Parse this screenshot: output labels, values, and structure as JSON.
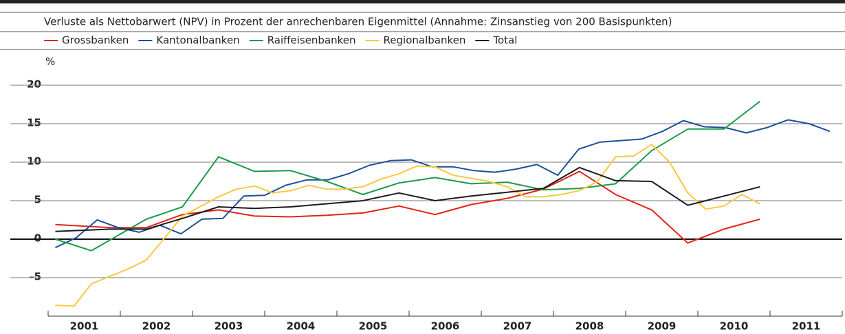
{
  "chart_data": {
    "type": "line",
    "subtitle": "Verluste als Nettobarwert (NPV) in Prozent der anrechenbaren Eigenmittel (Annahme: Zinsanstieg von 200 Basispunkten)",
    "y_label": "%",
    "xlim": [
      2001,
      2012
    ],
    "xticks": [
      {
        "value": 2001,
        "label": "2001"
      },
      {
        "value": 2002,
        "label": "2002"
      },
      {
        "value": 2003,
        "label": "2003"
      },
      {
        "value": 2004,
        "label": "2004"
      },
      {
        "value": 2005,
        "label": "2005"
      },
      {
        "value": 2006,
        "label": "2006"
      },
      {
        "value": 2007,
        "label": "2007"
      },
      {
        "value": 2008,
        "label": "2008"
      },
      {
        "value": 2009,
        "label": "2009"
      },
      {
        "value": 2010,
        "label": "2010"
      },
      {
        "value": 2011,
        "label": "2011"
      }
    ],
    "ylim": [
      -10,
      20
    ],
    "yticks": [
      {
        "value": -5,
        "label": "–5"
      },
      0,
      5,
      10,
      15,
      20
    ],
    "grid": true,
    "series": [
      {
        "name": "Grossbanken",
        "color": "#e2231a",
        "x": [
          2001.1,
          2001.86,
          2002.36,
          2002.86,
          2003.36,
          2003.86,
          2004.36,
          2004.86,
          2005.36,
          2005.86,
          2006.36,
          2006.86,
          2007.36,
          2007.86,
          2008.36,
          2008.86,
          2009.36,
          2009.86,
          2010.36,
          2010.86
        ],
        "values": [
          1.9,
          1.5,
          1.5,
          3.2,
          3.8,
          3.0,
          2.9,
          3.1,
          3.4,
          4.3,
          3.2,
          4.5,
          5.3,
          6.5,
          8.8,
          5.8,
          3.8,
          -0.5,
          1.3,
          2.6
        ]
      },
      {
        "name": "Kantonalbanken",
        "color": "#1d4f9c",
        "x": [
          2001.1,
          2001.39,
          2001.68,
          2001.97,
          2002.26,
          2002.55,
          2002.84,
          2003.13,
          2003.42,
          2003.71,
          2004.0,
          2004.29,
          2004.58,
          2004.87,
          2005.16,
          2005.45,
          2005.74,
          2006.03,
          2006.32,
          2006.61,
          2006.9,
          2007.19,
          2007.48,
          2007.77,
          2008.06,
          2008.35,
          2008.64,
          2008.93,
          2009.22,
          2009.51,
          2009.8,
          2010.09,
          2010.38,
          2010.67,
          2010.96,
          2011.25,
          2011.54,
          2011.83
        ],
        "values": [
          -1.1,
          0.2,
          2.5,
          1.5,
          0.9,
          1.8,
          0.7,
          2.6,
          2.7,
          5.6,
          5.7,
          7.0,
          7.7,
          7.7,
          8.5,
          9.6,
          10.2,
          10.3,
          9.4,
          9.4,
          8.9,
          8.7,
          9.1,
          9.7,
          8.3,
          11.7,
          12.6,
          12.8,
          13.0,
          14.0,
          15.4,
          14.6,
          14.5,
          13.8,
          14.5,
          15.5,
          15.0,
          14.0
        ]
      },
      {
        "name": "Raiffeisenbanken",
        "color": "#1a9a48",
        "x": [
          2001.1,
          2001.6,
          2002.36,
          2002.86,
          2003.36,
          2003.86,
          2004.36,
          2004.86,
          2005.36,
          2005.86,
          2006.36,
          2006.86,
          2007.36,
          2007.86,
          2008.36,
          2008.86,
          2009.36,
          2009.86,
          2010.36,
          2010.86
        ],
        "values": [
          0.0,
          -1.5,
          2.6,
          4.2,
          10.7,
          8.8,
          8.9,
          7.5,
          5.8,
          7.3,
          8.0,
          7.2,
          7.4,
          6.4,
          6.6,
          7.2,
          11.5,
          14.3,
          14.3,
          17.9
        ]
      },
      {
        "name": "Regionalbanken",
        "color": "#f7c940",
        "x": [
          2001.1,
          2001.36,
          2001.6,
          2002.1,
          2002.36,
          2002.6,
          2002.86,
          2003.36,
          2003.61,
          2003.86,
          2004.11,
          2004.36,
          2004.61,
          2004.86,
          2005.11,
          2005.36,
          2005.61,
          2005.86,
          2006.11,
          2006.36,
          2006.61,
          2006.86,
          2007.11,
          2007.36,
          2007.61,
          2007.86,
          2008.11,
          2008.36,
          2008.61,
          2008.86,
          2009.11,
          2009.36,
          2009.61,
          2009.86,
          2010.11,
          2010.36,
          2010.61,
          2010.86
        ],
        "values": [
          -8.6,
          -8.7,
          -5.8,
          -3.9,
          -2.7,
          0.0,
          3.0,
          5.5,
          6.5,
          6.9,
          6.0,
          6.3,
          7.0,
          6.5,
          6.5,
          6.8,
          7.8,
          8.5,
          9.5,
          9.4,
          8.3,
          7.9,
          7.5,
          6.8,
          5.5,
          5.5,
          5.8,
          6.3,
          7.5,
          10.7,
          10.8,
          12.3,
          10.0,
          6.0,
          3.9,
          4.3,
          5.8,
          4.6
        ]
      },
      {
        "name": "Total",
        "color": "#1a1a1a",
        "x": [
          2001.1,
          2001.86,
          2002.36,
          2002.86,
          2003.36,
          2003.86,
          2004.36,
          2004.86,
          2005.36,
          2005.86,
          2006.36,
          2006.86,
          2007.36,
          2007.86,
          2008.36,
          2008.86,
          2009.36,
          2009.86,
          2010.36,
          2010.86
        ],
        "values": [
          1.0,
          1.3,
          1.3,
          2.7,
          4.2,
          4.0,
          4.2,
          4.6,
          5.0,
          6.0,
          5.0,
          5.6,
          6.1,
          6.6,
          9.3,
          7.6,
          7.5,
          4.4,
          5.6,
          6.8
        ]
      }
    ]
  }
}
